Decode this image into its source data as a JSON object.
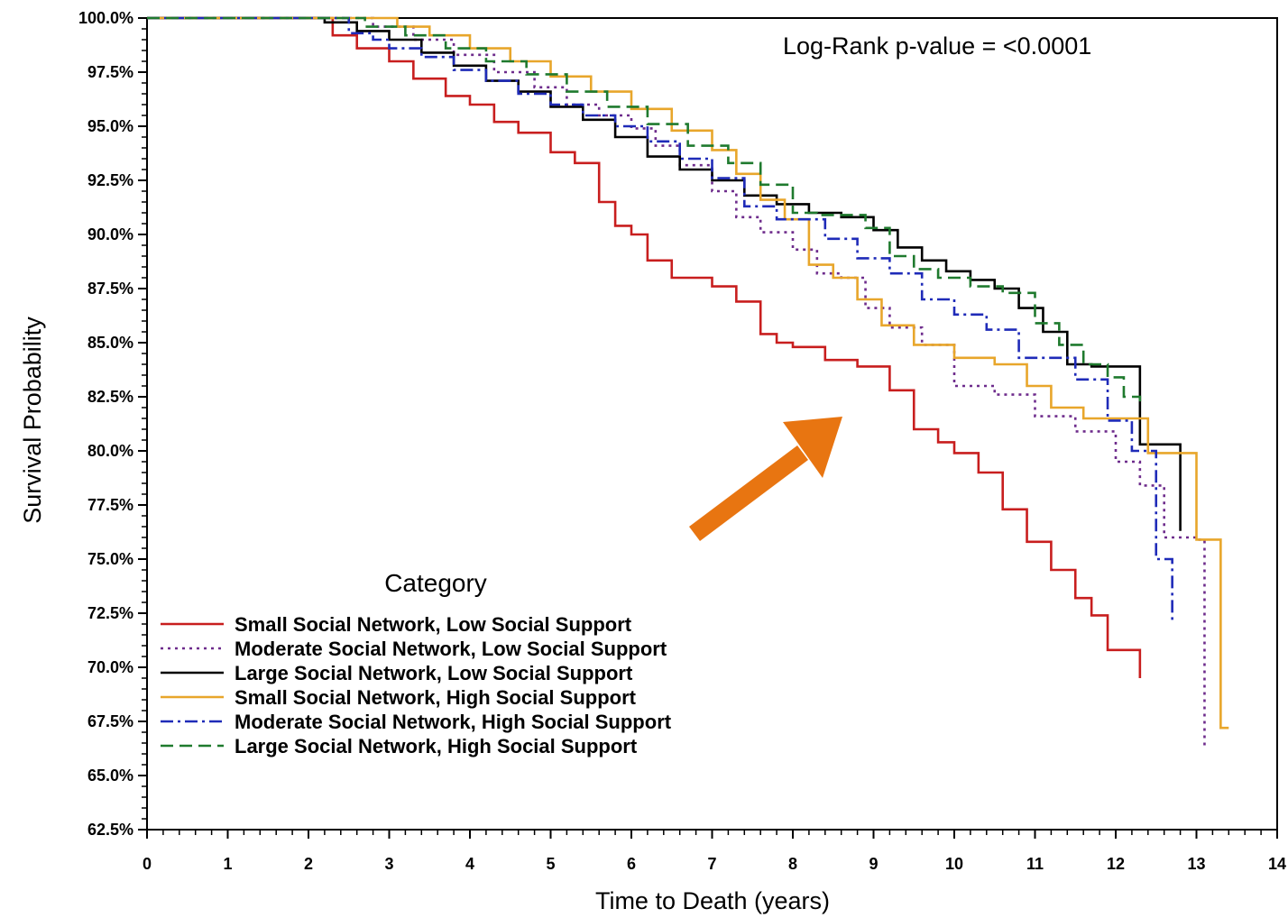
{
  "chart_data": {
    "type": "line",
    "step": true,
    "xlabel": "Time to Death (years)",
    "ylabel": "Survival Probability",
    "xlim": [
      0,
      14
    ],
    "ylim": [
      62.5,
      100
    ],
    "x_ticks": [
      "0",
      "1",
      "2",
      "3",
      "4",
      "5",
      "6",
      "7",
      "8",
      "9",
      "10",
      "11",
      "12",
      "13",
      "14"
    ],
    "y_ticks": [
      "62.5%",
      "65.0%",
      "67.5%",
      "70.0%",
      "72.5%",
      "75.0%",
      "77.5%",
      "80.0%",
      "82.5%",
      "85.0%",
      "87.5%",
      "90.0%",
      "92.5%",
      "95.0%",
      "97.5%",
      "100.0%"
    ],
    "annotation": "Log-Rank p-value = <0.0001",
    "legend_title": "Category",
    "legend_position": "lower-left",
    "grid": false,
    "arrow_color": "#E87511",
    "series": [
      {
        "name": "Small Social Network, Low Social Support",
        "color": "#C81E1E",
        "dash": "solid",
        "x": [
          0,
          2.3,
          2.6,
          3.0,
          3.3,
          3.7,
          4.0,
          4.3,
          4.6,
          5.0,
          5.3,
          5.6,
          5.8,
          6.0,
          6.2,
          6.5,
          7.0,
          7.3,
          7.6,
          7.8,
          8.0,
          8.4,
          8.8,
          9.2,
          9.5,
          9.8,
          10.0,
          10.3,
          10.6,
          10.9,
          11.2,
          11.5,
          11.7,
          11.9,
          12.3
        ],
        "y": [
          100,
          99.2,
          98.6,
          98.0,
          97.2,
          96.4,
          96.0,
          95.2,
          94.7,
          93.8,
          93.3,
          91.5,
          90.4,
          90.0,
          88.8,
          88.0,
          87.6,
          86.9,
          85.4,
          85.0,
          84.8,
          84.2,
          83.9,
          82.8,
          81.0,
          80.4,
          79.9,
          79.0,
          77.3,
          75.8,
          74.5,
          73.2,
          72.4,
          70.8,
          69.5
        ]
      },
      {
        "name": "Moderate Social Network, Low Social Support",
        "color": "#6E2C8C",
        "dash": "dot",
        "x": [
          0,
          2.8,
          3.3,
          3.8,
          4.3,
          4.8,
          5.2,
          5.6,
          6.0,
          6.3,
          6.6,
          7.0,
          7.3,
          7.6,
          8.0,
          8.3,
          8.6,
          8.9,
          9.2,
          9.6,
          10.0,
          10.5,
          11.0,
          11.5,
          12.0,
          12.3,
          12.6,
          13.0,
          13.1
        ],
        "y": [
          100,
          99.6,
          99.0,
          98.3,
          97.5,
          96.8,
          96.0,
          95.5,
          94.9,
          94.1,
          93.2,
          92.0,
          90.8,
          90.1,
          89.3,
          88.2,
          88.0,
          86.6,
          85.7,
          84.9,
          83.0,
          82.6,
          81.6,
          80.9,
          79.5,
          78.4,
          76.0,
          75.9,
          66.3
        ]
      },
      {
        "name": "Large Social Network, Low Social Support",
        "color": "#000000",
        "dash": "solid",
        "x": [
          0,
          2.2,
          2.6,
          3.0,
          3.4,
          3.8,
          4.2,
          4.6,
          5.0,
          5.4,
          5.8,
          6.2,
          6.6,
          7.0,
          7.4,
          7.8,
          8.2,
          8.6,
          9.0,
          9.3,
          9.6,
          9.9,
          10.2,
          10.5,
          10.8,
          11.1,
          11.4,
          11.7,
          12.0,
          12.3,
          12.6,
          12.8
        ],
        "y": [
          100,
          99.8,
          99.4,
          99.0,
          98.4,
          97.8,
          97.1,
          96.6,
          95.9,
          95.3,
          94.5,
          93.6,
          93.0,
          92.5,
          91.8,
          91.4,
          91.0,
          90.8,
          90.2,
          89.4,
          88.8,
          88.3,
          87.9,
          87.5,
          86.6,
          85.5,
          84.0,
          83.9,
          83.9,
          80.3,
          80.3,
          76.3
        ]
      },
      {
        "name": "Small Social Network, High Social Support",
        "color": "#E8A62B",
        "dash": "solid",
        "x": [
          0,
          3.1,
          3.5,
          4.0,
          4.5,
          5.0,
          5.5,
          6.0,
          6.5,
          7.0,
          7.3,
          7.6,
          7.9,
          8.2,
          8.5,
          8.8,
          9.1,
          9.5,
          10.0,
          10.5,
          10.9,
          11.2,
          11.6,
          12.0,
          12.4,
          12.8,
          13.0,
          13.3,
          13.4
        ],
        "y": [
          100,
          99.6,
          99.2,
          98.6,
          98.0,
          97.3,
          96.6,
          95.8,
          94.8,
          93.9,
          92.8,
          91.6,
          90.7,
          88.6,
          88.0,
          87.0,
          85.8,
          84.9,
          84.3,
          84.0,
          83.0,
          82.0,
          81.5,
          81.5,
          79.9,
          79.9,
          75.9,
          67.2,
          67.2
        ]
      },
      {
        "name": "Moderate Social Network, High Social Support",
        "color": "#1F2BB8",
        "dash": "dashdot",
        "x": [
          0,
          2.5,
          2.8,
          3.0,
          3.4,
          3.8,
          4.2,
          4.6,
          5.0,
          5.4,
          5.8,
          6.2,
          6.6,
          7.0,
          7.4,
          7.8,
          8.1,
          8.4,
          8.8,
          9.2,
          9.6,
          10.0,
          10.4,
          10.8,
          11.1,
          11.5,
          11.9,
          12.2,
          12.5,
          12.6,
          12.7
        ],
        "y": [
          100,
          99.3,
          99.0,
          98.6,
          98.2,
          97.6,
          97.1,
          96.5,
          96.0,
          95.5,
          95.0,
          94.3,
          93.5,
          92.6,
          91.3,
          90.7,
          90.7,
          89.8,
          88.9,
          88.2,
          87.0,
          86.3,
          85.6,
          84.3,
          84.3,
          83.3,
          81.4,
          80.0,
          75.0,
          75.0,
          72.1
        ]
      },
      {
        "name": "Large Social Network, High Social Support",
        "color": "#1F7A2E",
        "dash": "dash",
        "x": [
          0,
          2.7,
          3.2,
          3.7,
          4.2,
          4.7,
          5.2,
          5.7,
          6.2,
          6.7,
          7.2,
          7.6,
          8.0,
          8.3,
          8.6,
          8.9,
          9.2,
          9.5,
          9.8,
          10.2,
          10.6,
          11.0,
          11.3,
          11.6,
          11.9,
          12.1,
          12.3
        ],
        "y": [
          100,
          99.6,
          99.2,
          98.6,
          98.0,
          97.4,
          96.6,
          95.9,
          95.1,
          94.1,
          93.3,
          92.3,
          91.0,
          90.9,
          90.9,
          90.3,
          89.0,
          88.4,
          88.0,
          87.6,
          87.3,
          85.9,
          84.9,
          84.0,
          83.4,
          82.5,
          82.0
        ]
      }
    ]
  }
}
